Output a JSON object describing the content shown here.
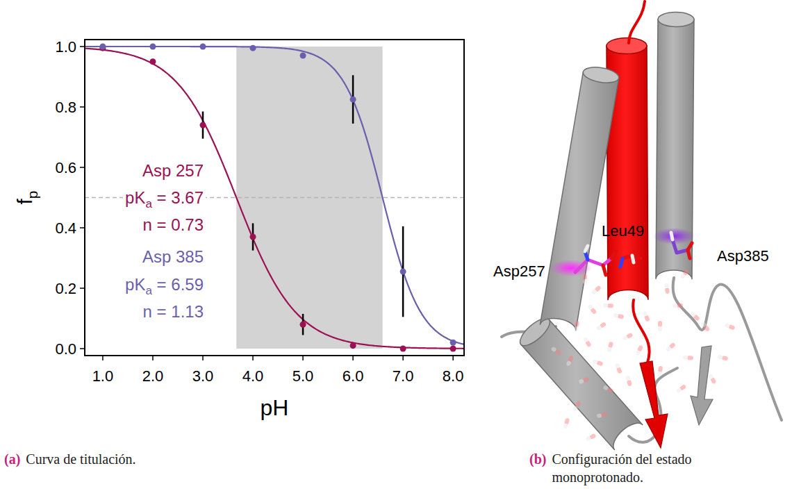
{
  "chart_data": {
    "type": "scatter",
    "xlabel": "pH",
    "ylabel": "f",
    "ylabel_subscript": "p",
    "pka_symbol": "pK",
    "pka_subscript": "a",
    "n_symbol": "n",
    "equals": " = ",
    "caption_letter": "(a)",
    "caption": "Curva de titulación.",
    "x": [
      1,
      2,
      3,
      4,
      5,
      6,
      7,
      8
    ],
    "xlim": [
      0.64,
      8.22
    ],
    "ylim": [
      -0.023,
      1.023
    ],
    "xticks": [
      {
        "value": 1,
        "label": "1.0"
      },
      {
        "value": 2,
        "label": "2.0"
      },
      {
        "value": 3,
        "label": "3.0"
      },
      {
        "value": 4,
        "label": "4.0"
      },
      {
        "value": 5,
        "label": "5.0"
      },
      {
        "value": 6,
        "label": "6.0"
      },
      {
        "value": 7,
        "label": "7.0"
      },
      {
        "value": 8,
        "label": "8.0"
      }
    ],
    "yticks": [
      {
        "value": 0,
        "label": "0.0"
      },
      0.2,
      0.4,
      0.6,
      0.8,
      {
        "value": 1,
        "label": "1.0"
      }
    ],
    "reference_line": 0.5,
    "series": [
      {
        "name": "Asp 257",
        "color": "#9b1153",
        "values": [
          0.995,
          0.95,
          0.74,
          0.37,
          0.08,
          0.01,
          0.0,
          0.0
        ],
        "errors": [
          0,
          0,
          0.045,
          0.045,
          0.035,
          0,
          0,
          0
        ],
        "pKa": 3.67,
        "n": 0.73
      },
      {
        "name": "Asp 385",
        "color": "#6b5fad",
        "values": [
          1.0,
          1.0,
          1.0,
          0.995,
          0.97,
          0.825,
          0.255,
          0.02
        ],
        "errors": [
          0,
          0,
          0,
          0,
          0,
          0.08,
          0.15,
          0
        ],
        "pKa": 6.59,
        "n": 1.13
      }
    ]
  },
  "diagram": {
    "letter": "(b)",
    "caption": "Configuración del estado monoprotonado.",
    "labels": [
      "Asp257",
      "Leu49",
      "Asp385"
    ]
  }
}
